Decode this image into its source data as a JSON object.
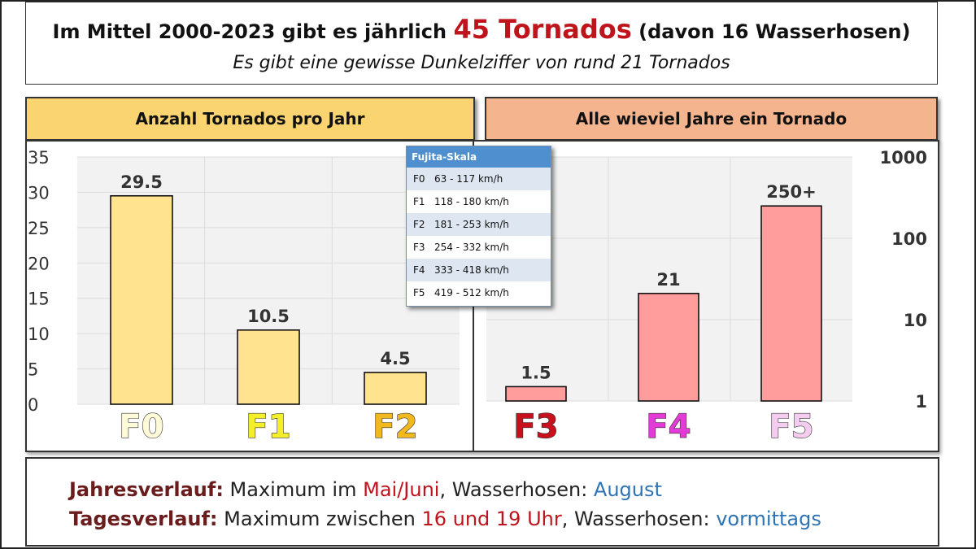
{
  "header": {
    "line1_pre": "Im Mittel 2000-2023 gibt es jährlich",
    "line1_big": "45 Tornados",
    "line1_post": "(davon 16 Wasserhosen)",
    "line2": "Es gibt eine gewisse Dunkelziffer von rund  21 Tornados"
  },
  "chart_data": [
    {
      "type": "bar",
      "title": "Anzahl Tornados pro Jahr",
      "categories": [
        "F0",
        "F1",
        "F2"
      ],
      "values": [
        29.5,
        10.5,
        4.5
      ],
      "data_labels": [
        "29.5",
        "10.5",
        "4.5"
      ],
      "yticks": [
        "0",
        "5",
        "10",
        "15",
        "20",
        "25",
        "30",
        "35"
      ],
      "ylim": [
        0,
        35
      ],
      "bar_color": "#ffe38e",
      "category_colors": [
        "#fffbd9",
        "#f5ef2a",
        "#f2b81f"
      ],
      "grid": true
    },
    {
      "type": "bar",
      "title": "Alle wieviel Jahre ein Tornado",
      "categories": [
        "F3",
        "F4",
        "F5"
      ],
      "values": [
        1.5,
        21,
        250
      ],
      "data_labels": [
        "1.5",
        "21",
        "250+"
      ],
      "yticks": [
        "1",
        "10",
        "100",
        "1000"
      ],
      "ylim": [
        1,
        1000
      ],
      "yscale": "log",
      "bar_color": "#ff9d9d",
      "category_colors": [
        "#c9101d",
        "#e43ad6",
        "#f3ccf0"
      ],
      "grid": true
    }
  ],
  "fujita": {
    "title": "Fujita-Skala",
    "rows": [
      {
        "cls": "F0",
        "range": "63 - 117 km/h"
      },
      {
        "cls": "F1",
        "range": "118 - 180 km/h"
      },
      {
        "cls": "F2",
        "range": "181 - 253 km/h"
      },
      {
        "cls": "F3",
        "range": "254 - 332 km/h"
      },
      {
        "cls": "F4",
        "range": "333 - 418 km/h"
      },
      {
        "cls": "F5",
        "range": "419 - 512 km/h"
      }
    ]
  },
  "footer": {
    "l1_label": "Jahresverlauf:",
    "l1_a": " Maximum im ",
    "l1_b": "Mai/Juni",
    "l1_c": ", Wasserhosen: ",
    "l1_d": "August",
    "l2_label": "Tagesverlauf:",
    "l2_a": "  Maximum zwischen ",
    "l2_b": "16 und 19 Uhr",
    "l2_c": ", Wasserhosen: ",
    "l2_d": "vormittags"
  }
}
